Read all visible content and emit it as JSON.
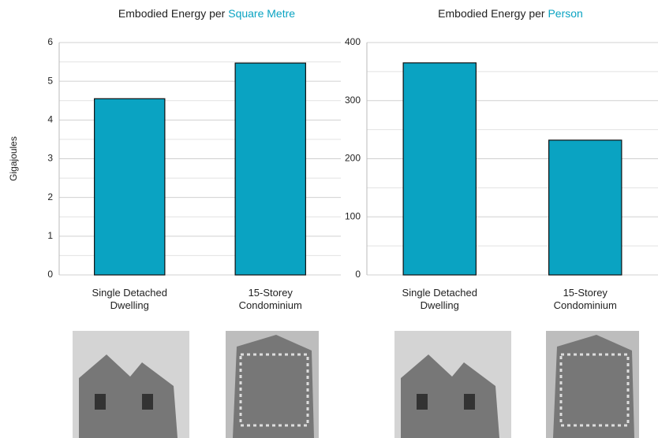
{
  "chart_data": [
    {
      "type": "bar",
      "title": "Embodied Energy per",
      "title_highlight": "Square Metre",
      "y_label": "Gigajoules",
      "categories": [
        "Single Detached Dwelling",
        "15-Storey Condominium"
      ],
      "values": [
        4.55,
        5.47
      ],
      "color": "#0aa3c2",
      "ylim": [
        0,
        6
      ],
      "yticks": [
        0,
        1,
        2,
        3,
        4,
        5,
        6
      ],
      "minor_yticks": [
        0.5,
        1.5,
        2.5,
        3.5,
        4.5,
        5.5
      ],
      "grid": true
    },
    {
      "type": "bar",
      "title": "Embodied Energy per",
      "title_highlight": "Person",
      "categories": [
        "Single Detached Dwelling",
        "15-Storey Condominium"
      ],
      "values": [
        365,
        232
      ],
      "color": "#0aa3c2",
      "ylim": [
        0,
        400
      ],
      "yticks": [
        0,
        100,
        200,
        300,
        400
      ],
      "minor_yticks": [
        50,
        150,
        250,
        350
      ],
      "grid": true
    }
  ]
}
